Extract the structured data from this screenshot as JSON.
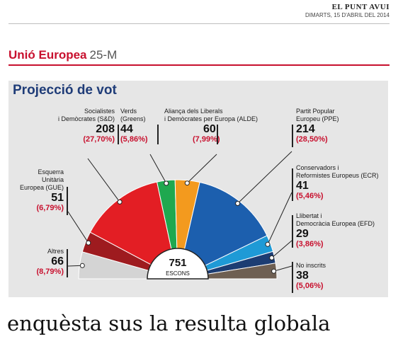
{
  "masthead": {
    "paper": "EL PUNT AVUI",
    "date": "DIMARTS, 15 D'ABRIL DEL 2014"
  },
  "section": {
    "name": "Unió Europea",
    "tag": "25-M"
  },
  "chart_data": {
    "type": "pie",
    "title": "Projecció de vot",
    "total": {
      "value": "751",
      "label": "ESCONS"
    },
    "slices": [
      {
        "name": "Altres",
        "seats": 66,
        "pct": "(8,79%)",
        "color": "#d4d4d4"
      },
      {
        "name": "Esquerra Unitària Europea (GUE)",
        "seats": 51,
        "pct": "(6,79%)",
        "color": "#9e1b1f"
      },
      {
        "name": "Socialistes i Demòcrates (S&D)",
        "seats": 208,
        "pct": "(27,70%)",
        "color": "#e31e24"
      },
      {
        "name": "Verds (Greens)",
        "seats": 44,
        "pct": "(5,86%)",
        "color": "#1fa84f"
      },
      {
        "name": "Aliança dels Liberals i Demòcrates per Europa (ALDE)",
        "seats": 60,
        "pct": "(7,99%)",
        "color": "#f39a1e"
      },
      {
        "name": "Partit Popular Europeu (PPE)",
        "seats": 214,
        "pct": "(28,50%)",
        "color": "#1c5fae"
      },
      {
        "name": "Conservadors i Reformistes Europeus (ECR)",
        "seats": 41,
        "pct": "(5,46%)",
        "color": "#1e9ad6"
      },
      {
        "name": "Llibertat i Democràcia Europea (EFD)",
        "seats": 29,
        "pct": "(3,86%)",
        "color": "#1c3d73"
      },
      {
        "name": "No inscrits",
        "seats": 38,
        "pct": "(5,06%)",
        "color": "#6e5f52"
      }
    ]
  },
  "labels": {
    "sd": {
      "l1": "Socialistes",
      "l2": "i Demòcrates (S&D)",
      "seats": "208",
      "pct": "(27,70%)"
    },
    "greens": {
      "l1": "Verds",
      "l2": "(Greens)",
      "seats": "44",
      "pct": "(5,86%)"
    },
    "alde": {
      "l1": "Aliança dels Liberals",
      "l2": "i Demòcrates per Europa (ALDE)",
      "seats": "60",
      "pct": "(7,99%)"
    },
    "ppe": {
      "l1": "Partit Popular",
      "l2": "Europeu (PPE)",
      "seats": "214",
      "pct": "(28,50%)"
    },
    "gue": {
      "l1": "Esquerra",
      "l2": "Unitària",
      "l3": "Europea (GUE)",
      "seats": "51",
      "pct": "(6,79%)"
    },
    "ecr": {
      "l1": "Conservadors i",
      "l2": "Reformistes Europeus (ECR)",
      "seats": "41",
      "pct": "(5,46%)"
    },
    "efd": {
      "l1": "Llibertat i",
      "l2": "Democràcia Europea (EFD)",
      "seats": "29",
      "pct": "(3,86%)"
    },
    "altres": {
      "l1": "Altres",
      "seats": "66",
      "pct": "(8,79%)"
    },
    "ni": {
      "l1": "No inscrits",
      "seats": "38",
      "pct": "(5,06%)"
    }
  },
  "caption": "enquèsta sus la resulta globala"
}
